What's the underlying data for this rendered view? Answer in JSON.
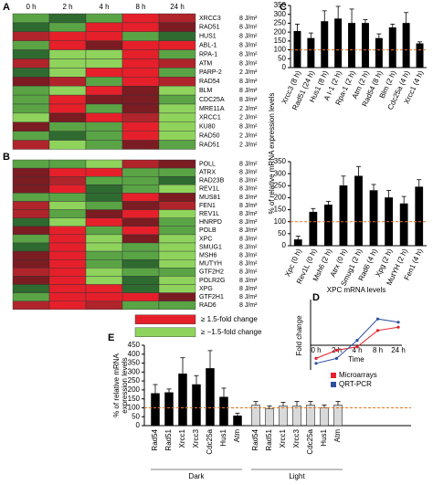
{
  "panel_labels": [
    "A",
    "B",
    "C",
    "D",
    "E"
  ],
  "chart_data": [
    {
      "type": "heatmap",
      "categories": [
        "0 h",
        "2 h",
        "4 h",
        "8 h",
        "24 h"
      ],
      "rows": [
        {
          "label": "XRCC3",
          "dose": "8 J/m²",
          "cells": [
            "#5aa446",
            "#2f6a30",
            "#5aa446",
            "#e5202b",
            "#b0242b"
          ]
        },
        {
          "label": "RAD51",
          "dose": "8 J/m²",
          "cells": [
            "#2f6a30",
            "#5aa446",
            "#e5202b",
            "#e5202b",
            "#7a1c22"
          ]
        },
        {
          "label": "HUS1",
          "dose": "8 J/m²",
          "cells": [
            "#b0242b",
            "#e5202b",
            "#e5202b",
            "#5aa446",
            "#2f6a30"
          ]
        },
        {
          "label": "ABL-1",
          "dose": "8 J/m²",
          "cells": [
            "#5aa446",
            "#e5202b",
            "#7a1c22",
            "#e5202b",
            "#e5202b"
          ]
        },
        {
          "label": "RPA-1",
          "dose": "8 J/m²",
          "cells": [
            "#2f6a30",
            "#8fd35d",
            "#8fd35d",
            "#e5202b",
            "#5aa446"
          ]
        },
        {
          "label": "ATM",
          "dose": "8 J/m²",
          "cells": [
            "#b0242b",
            "#8fd35d",
            "#8fd35d",
            "#e5202b",
            "#b0242b"
          ]
        },
        {
          "label": "PARP-2",
          "dose": "2 J/m²",
          "cells": [
            "#2f6a30",
            "#8fd35d",
            "#e5202b",
            "#e5202b",
            "#5aa446"
          ]
        },
        {
          "label": "RAD54",
          "dose": "8 J/m²",
          "cells": [
            "#7a1c22",
            "#b0242b",
            "#5aa446",
            "#e5202b",
            "#b0242b"
          ]
        },
        {
          "label": "BLM",
          "dose": "8 J/m²",
          "cells": [
            "#5aa446",
            "#8fd35d",
            "#e5202b",
            "#7a1c22",
            "#8fd35d"
          ]
        },
        {
          "label": "CDC25A",
          "dose": "8 J/m²",
          "cells": [
            "#5aa446",
            "#e5202b",
            "#7a1c22",
            "#7a1c22",
            "#5aa446"
          ]
        },
        {
          "label": "MRE11A",
          "dose": "2 J/m²",
          "cells": [
            "#5aa446",
            "#e5202b",
            "#5aa446",
            "#7a1c22",
            "#8fd35d"
          ]
        },
        {
          "label": "XRCC1",
          "dose": "2 J/m²",
          "cells": [
            "#8fd35d",
            "#7a1c22",
            "#e5202b",
            "#b0242b",
            "#8fd35d"
          ]
        },
        {
          "label": "KU80",
          "dose": "8 J/m²",
          "cells": [
            "#7a1c22",
            "#5aa446",
            "#5aa446",
            "#e5202b",
            "#8fd35d"
          ]
        },
        {
          "label": "RAD50",
          "dose": "2 J/m²",
          "label_color": "#e5202b",
          "cells": [
            "#5aa446",
            "#2f6a30",
            "#5aa446",
            "#e5202b",
            "#8fd35d"
          ]
        },
        {
          "label": "RAD51",
          "dose": "2 J/m²",
          "cells": [
            "#b0242b",
            "#8fd35d",
            "#5aa446",
            "#7a1c22",
            "#5aa446"
          ]
        }
      ]
    },
    {
      "type": "heatmap",
      "rows": [
        {
          "label": "POLL",
          "dose": "8 J/m²",
          "cells": [
            "#5aa446",
            "#5aa446",
            "#8fd35d",
            "#b0242b",
            "#7a1c22"
          ]
        },
        {
          "label": "ATRX",
          "dose": "8 J/m²",
          "label_color": "#e5202b",
          "cells": [
            "#7a1c22",
            "#e5202b",
            "#e5202b",
            "#5aa446",
            "#5aa446"
          ]
        },
        {
          "label": "RAD23B",
          "dose": "8 J/m²",
          "label_color": "#e5202b",
          "cells": [
            "#7a1c22",
            "#b0242b",
            "#5aa446",
            "#5aa446",
            "#2f6a30"
          ]
        },
        {
          "label": "REV1L",
          "dose": "8 J/m²",
          "cells": [
            "#7a1c22",
            "#e5202b",
            "#2f6a30",
            "#5aa446",
            "#8fd35d"
          ]
        },
        {
          "label": "MUS81",
          "dose": "8 J/m²",
          "cells": [
            "#5aa446",
            "#5aa446",
            "#2f6a30",
            "#e5202b",
            "#7a1c22"
          ]
        },
        {
          "label": "FEN1",
          "dose": "8 J/m²",
          "cells": [
            "#b0242b",
            "#8fd35d",
            "#5aa446",
            "#7a1c22",
            "#b0242b"
          ]
        },
        {
          "label": "REV1L",
          "dose": "8 J/m²",
          "cells": [
            "#b0242b",
            "#5aa446",
            "#7a1c22",
            "#e5202b",
            "#8fd35d"
          ]
        },
        {
          "label": "HNRPD",
          "dose": "8 J/m²",
          "cells": [
            "#2f6a30",
            "#8fd35d",
            "#e5202b",
            "#7a1c22",
            "#5aa446"
          ]
        },
        {
          "label": "POLB",
          "dose": "8 J/m²",
          "label_color": "#8cb43a",
          "cells": [
            "#7a1c22",
            "#e5202b",
            "#5aa446",
            "#e5202b",
            "#5aa446"
          ]
        },
        {
          "label": "XPC",
          "dose": "8 J/m²",
          "cells": [
            "#5aa446",
            "#e5202b",
            "#8fd35d",
            "#7a1c22",
            "#8fd35d"
          ]
        },
        {
          "label": "SMUG1",
          "dose": "8 J/m²",
          "cells": [
            "#2f6a30",
            "#e5202b",
            "#8fd35d",
            "#5aa446",
            "#8fd35d"
          ]
        },
        {
          "label": "MSH6",
          "dose": "8 J/m²",
          "cells": [
            "#7a1c22",
            "#e5202b",
            "#5aa446",
            "#5aa446",
            "#8fd35d"
          ]
        },
        {
          "label": "MUTYH",
          "dose": "8 J/m²",
          "label_color": "#e8741e",
          "cells": [
            "#7a1c22",
            "#e5202b",
            "#5aa446",
            "#2f6a30",
            "#8fd35d"
          ]
        },
        {
          "label": "GTF2H2",
          "dose": "8 J/m²",
          "cells": [
            "#b0242b",
            "#e5202b",
            "#8fd35d",
            "#5aa446",
            "#5aa446"
          ]
        },
        {
          "label": "POLR2G",
          "dose": "8 J/m²",
          "label_color": "#e5202b",
          "cells": [
            "#7a1c22",
            "#e5202b",
            "#8fd35d",
            "#2f6a30",
            "#8fd35d"
          ]
        },
        {
          "label": "XPG",
          "dose": "8 J/m²",
          "label_color": "#e5202b",
          "cells": [
            "#2f6a30",
            "#e5202b",
            "#e5202b",
            "#2f6a30",
            "#8fd35d"
          ]
        },
        {
          "label": "GTF2H1",
          "dose": "8 J/m²",
          "cells": [
            "#5aa446",
            "#e5202b",
            "#e5202b",
            "#e5202b",
            "#7a1c22"
          ]
        },
        {
          "label": "RAD6",
          "dose": "8 J/m²",
          "cells": [
            "#b0242b",
            "#e5202b",
            "#b0242b",
            "#5aa446",
            "#5aa446"
          ]
        }
      ],
      "legend": [
        {
          "color": "#e5202b",
          "label": "≥ 1.5-fold change"
        },
        {
          "color": "#8fd35d",
          "label": "≥ −1.5-fold change"
        }
      ]
    },
    {
      "type": "bar",
      "ylabel": "% of relative mRNA expression levels",
      "categories": [
        "Xrcc3 (8 h)",
        "Rad51 (24 h)",
        "Hus1 (8 h)",
        "A I-1 (2 h)",
        "Rpa-1 (2 h)",
        "Atm (2 h)",
        "Rad54 (8 h)",
        "Blm (2 h)",
        "Cdc25a (4 h)",
        "Xrcc1 (4 h)"
      ],
      "values": [
        205,
        165,
        260,
        275,
        250,
        250,
        165,
        225,
        250,
        135
      ],
      "errors": [
        40,
        30,
        60,
        70,
        80,
        20,
        25,
        20,
        60,
        10
      ],
      "color": "#000000",
      "ref_line": 100,
      "ref_color": "#e8741e",
      "ylim": [
        0,
        350
      ],
      "yticks": [
        0,
        50,
        100,
        150,
        200,
        250,
        300,
        350
      ]
    },
    {
      "type": "bar",
      "categories": [
        "Xpc (0 h)",
        "Rev1L (0 h)",
        "Msh6 (2 h)",
        "Atrx (0 h)",
        "Smug1 (2 h)",
        "Rad6 (4 h)",
        "Xpg (2 h)",
        "MutYH (2 h)",
        "Fen1 (4 h)"
      ],
      "values": [
        25,
        140,
        170,
        250,
        290,
        230,
        200,
        175,
        245
      ],
      "errors": [
        15,
        15,
        15,
        40,
        40,
        25,
        30,
        30,
        30
      ],
      "color": "#000000",
      "ref_line": 100,
      "ref_color": "#e8741e",
      "ylim": [
        0,
        350
      ],
      "yticks": [
        0,
        50,
        100,
        150,
        200,
        250,
        300,
        350
      ]
    },
    {
      "type": "line",
      "title": "XPC mRNA levels",
      "ylabel": "Fold change",
      "xlabel": "Time",
      "categories": [
        "0 h",
        "2 h",
        "4 h",
        "8 h",
        "24 h"
      ],
      "ylim": [
        -1.5,
        2
      ],
      "series": [
        {
          "name": "Microarrays",
          "color": "#e5202b",
          "values": [
            -0.8,
            -0.3,
            -0.1,
            0.9,
            1.1
          ]
        },
        {
          "name": "QRT-PCR",
          "color": "#2f4fa0",
          "values": [
            -1.1,
            -0.8,
            0.3,
            1.6,
            1.4
          ]
        }
      ]
    },
    {
      "type": "groupbar",
      "ylabel": [
        "% of relative mRNA",
        "expression levels"
      ],
      "categories": [
        "Rad54",
        "Rad51",
        "Xrcc1",
        "Xrcc3",
        "Cdc25a",
        "Hus1",
        "Atm"
      ],
      "series": [
        {
          "name": "Dark",
          "color": "#000000",
          "values": [
            180,
            185,
            290,
            230,
            320,
            160,
            55
          ],
          "errors": [
            50,
            20,
            90,
            50,
            100,
            50,
            15
          ]
        },
        {
          "name": "Light",
          "color": "#d9d9d9",
          "values": [
            115,
            95,
            110,
            110,
            115,
            100,
            115
          ],
          "errors": [
            20,
            15,
            20,
            25,
            20,
            15,
            20
          ]
        }
      ],
      "ref_line": 100,
      "ref_color": "#e8741e",
      "ylim": [
        0,
        450
      ],
      "yticks": [
        0,
        50,
        100,
        150,
        200,
        250,
        300,
        350,
        400,
        450
      ]
    }
  ]
}
